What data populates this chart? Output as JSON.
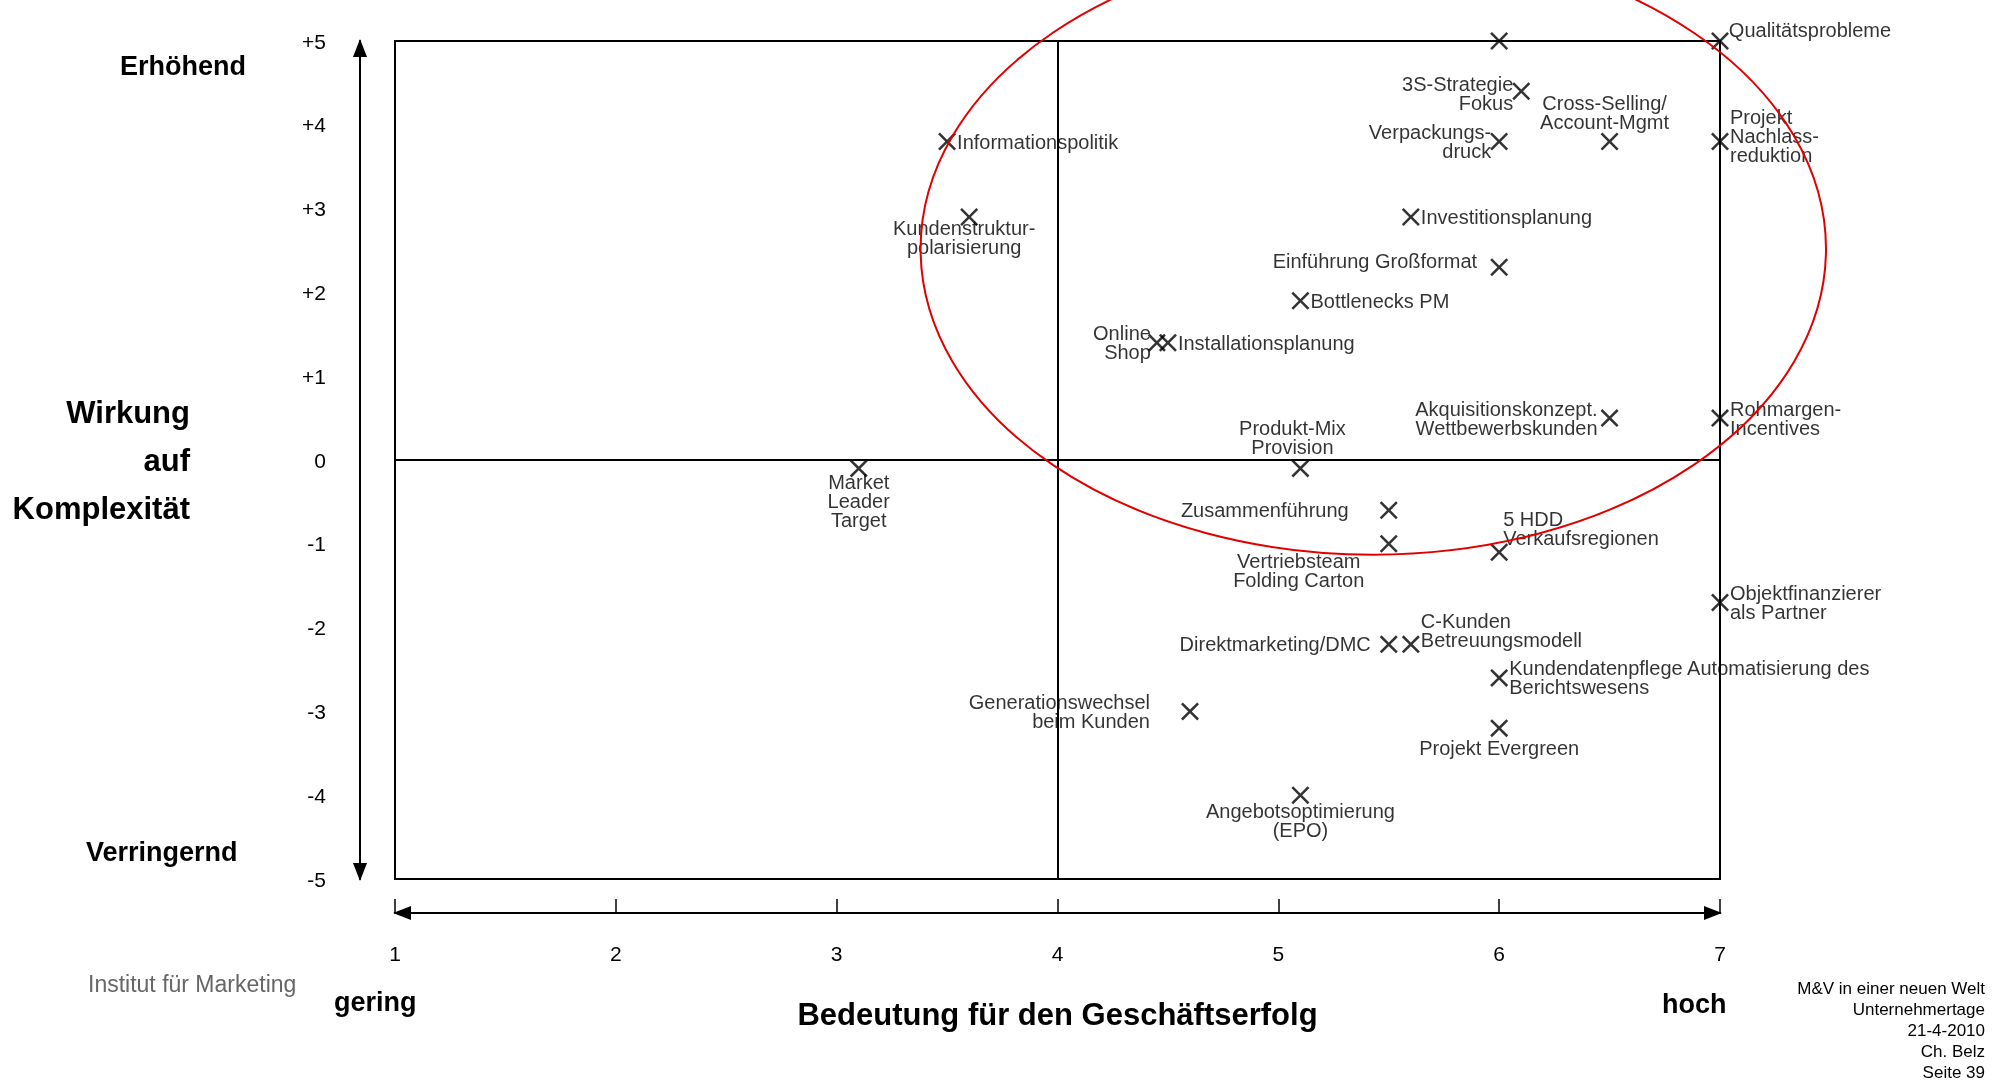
{
  "chart_data": {
    "type": "scatter",
    "xlabel": "Bedeutung für den Geschäftserfolg",
    "ylabel": "Wirkung auf Komplexität",
    "xlim": [
      1,
      7
    ],
    "xticks": [
      1,
      2,
      3,
      4,
      5,
      6,
      7
    ],
    "ylim": [
      -5,
      5
    ],
    "yticks": [
      {
        "value": 5,
        "label": "+5"
      },
      {
        "value": 4,
        "label": "+4"
      },
      {
        "value": 3,
        "label": "+3"
      },
      {
        "value": 2,
        "label": "+2"
      },
      {
        "value": 1,
        "label": "+1"
      },
      0,
      -1,
      -2,
      -3,
      -4,
      -5
    ],
    "marker": "cross",
    "series": [
      {
        "color": "#000000",
        "x": [
          3.5,
          3.6,
          7,
          6,
          6.1,
          6.5,
          6,
          7,
          5.6,
          6,
          5.1,
          4.45,
          4.5,
          6.5,
          7,
          5.1,
          3.1,
          5.5,
          5.5,
          6,
          7,
          5.5,
          5.6,
          6,
          6,
          4.6,
          5.1
        ],
        "values": [
          3.8,
          2.9,
          5,
          5,
          4.4,
          3.8,
          3.8,
          3.8,
          2.9,
          2.3,
          1.9,
          1.4,
          1.4,
          0.5,
          0.5,
          -0.1,
          -0.1,
          -0.6,
          -1,
          -1.1,
          -1.7,
          -2.2,
          -2.2,
          -2.6,
          -3.2,
          -3,
          -4
        ]
      }
    ],
    "ref_lines": [
      {
        "axis": "x",
        "value": 4,
        "color": "#000000"
      },
      {
        "axis": "y",
        "value": 0,
        "color": "#000000"
      }
    ],
    "annotations": [
      {
        "text": "Informationspolitik",
        "x": 3.5,
        "y": 3.8
      },
      {
        "text": "Kundenstruktur-\npolarisierung",
        "x": 3.6,
        "y": 2.9
      },
      {
        "text": "Qualitätsprobleme",
        "x": 7,
        "y": 5
      },
      {
        "text": "3S-Strategie\nFokus",
        "x": 6.1,
        "y": 4.4
      },
      {
        "text": "Cross-Selling/\nAccount-Mgmt",
        "x": 6.5,
        "y": 3.8
      },
      {
        "text": "Verpackungs-\ndruck",
        "x": 6,
        "y": 3.8
      },
      {
        "text": "Projekt\nNachlass-\nreduktion",
        "x": 7,
        "y": 3.8
      },
      {
        "text": "Investitionsplanung",
        "x": 5.6,
        "y": 2.9
      },
      {
        "text": "Einführung Großformat",
        "x": 6,
        "y": 2.3
      },
      {
        "text": "Bottlenecks PM",
        "x": 5.1,
        "y": 1.9
      },
      {
        "text": "Online\nShop",
        "x": 4.45,
        "y": 1.4
      },
      {
        "text": "Installationsplanung",
        "x": 4.5,
        "y": 1.4
      },
      {
        "text": "Akquisitionskonzept.\nWettbewerbskunden",
        "x": 6.5,
        "y": 0.5
      },
      {
        "text": "Rohmargen-\nIncentives",
        "x": 7,
        "y": 0.5
      },
      {
        "text": "Produkt-Mix\nProvision",
        "x": 5.1,
        "y": -0.1
      },
      {
        "text": "Market\nLeader\nTarget",
        "x": 3.1,
        "y": -0.1
      },
      {
        "text": "Zusammenführung",
        "x": 5.5,
        "y": -0.6
      },
      {
        "text": "Vertriebsteam\nFolding Carton",
        "x": 5.5,
        "y": -1
      },
      {
        "text": "5 HDD\nVerkaufsregionen",
        "x": 6,
        "y": -1.1
      },
      {
        "text": "Objektfinanzierer\nals Partner",
        "x": 7,
        "y": -1.7
      },
      {
        "text": "Direktmarketing/DMC",
        "x": 5.5,
        "y": -2.2
      },
      {
        "text": "C-Kunden\nBetreuungsmodell",
        "x": 5.6,
        "y": -2.2
      },
      {
        "text": "Kundendatenpflege Automatisierung des\nBerichtswesens",
        "x": 6,
        "y": -2.6
      },
      {
        "text": "Projekt Evergreen",
        "x": 6,
        "y": -3.2
      },
      {
        "text": "Generationswechsel\nbeim Kunden",
        "x": 4.6,
        "y": -3
      },
      {
        "text": "Angebotsoptimierung\n(EPO)",
        "x": 5.1,
        "y": -4
      },
      "Erhöhend",
      "Verringernd",
      "gering",
      "hoch",
      "M&V in einer neuen Welt\nUnternehmertage\n21-4-2010\nCh. Belz\nSeite 39",
      "Institut für Marketing"
    ]
  }
}
